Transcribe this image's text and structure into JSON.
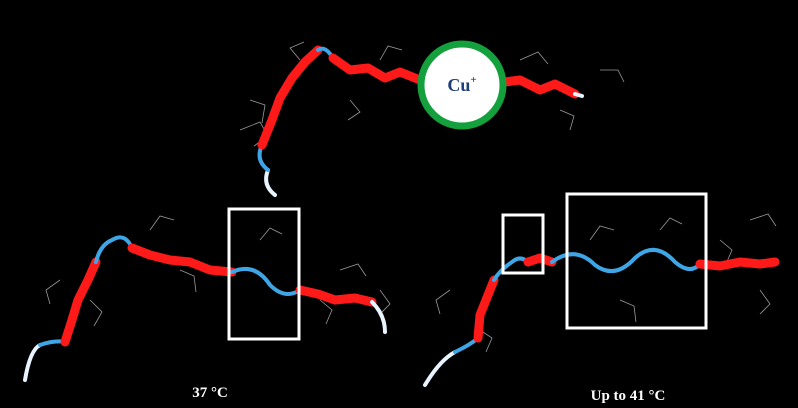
{
  "labels": {
    "ion": "Cu",
    "ion_charge": "+",
    "left_temperature": "37 °C",
    "right_temperature": "Up to 41 °C"
  }
}
